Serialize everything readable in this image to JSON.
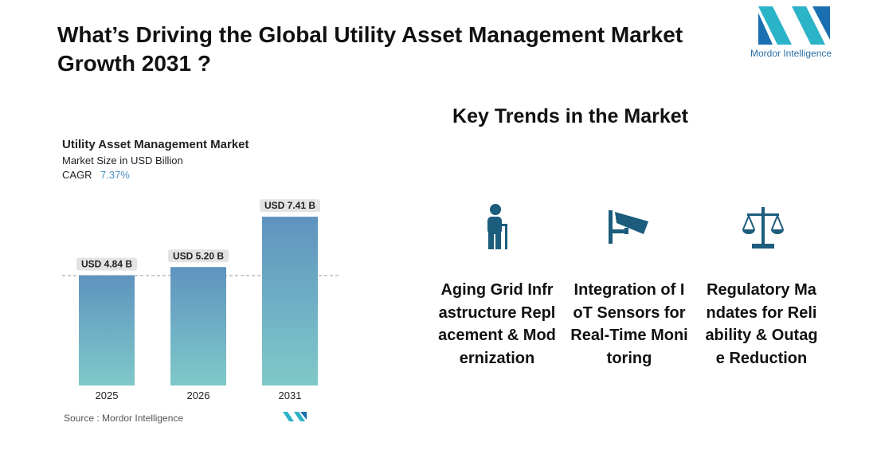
{
  "header": {
    "title": "What’s Driving the Global Utility Asset Management Market Growth 2031 ?"
  },
  "logo": {
    "text": "Mordor Intelligence"
  },
  "chart_data": {
    "type": "bar",
    "title": "Utility Asset Management Market",
    "subtitle": "Market Size in USD Billion",
    "cagr_label": "CAGR",
    "cagr": "7.37%",
    "categories": [
      "2025",
      "2026",
      "2031"
    ],
    "values": [
      4.84,
      5.2,
      7.41
    ],
    "value_labels": [
      "USD 4.84 B",
      "USD 5.20 B",
      "USD 7.41 B"
    ],
    "color": "#6a9fc2",
    "source": "Source :  Mordor Intelligence"
  },
  "trends": {
    "title": "Key Trends in the Market",
    "items": [
      {
        "label": "Aging Grid Infrastructure Replacement & Modernization"
      },
      {
        "label": "Integration of IoT Sensors for Real-Time Monitoring"
      },
      {
        "label": "Regulatory Mandates for Reliability & Outage Reduction"
      }
    ]
  }
}
